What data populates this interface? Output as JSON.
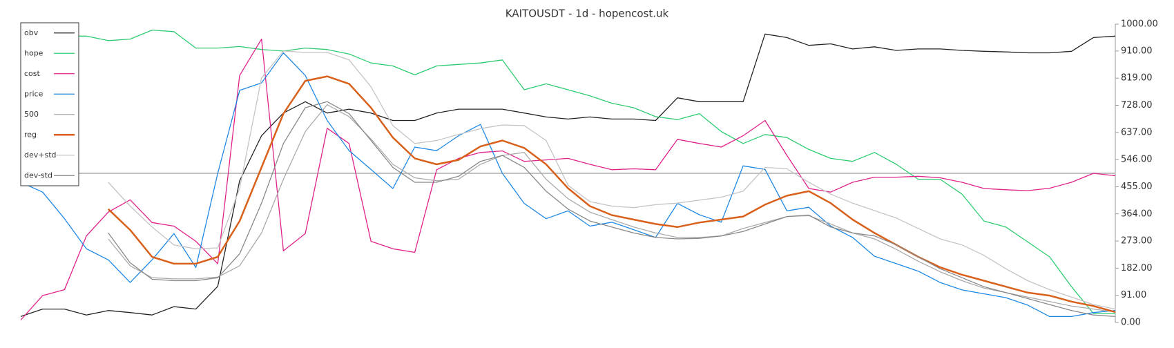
{
  "chart_data": {
    "type": "line",
    "title": "KAITOUSDT - 1d - hopencost.uk",
    "ylim": [
      0,
      1000
    ],
    "yticks": [
      {
        "value": 0,
        "label": "0.00"
      },
      {
        "value": 91,
        "label": "91.00"
      },
      {
        "value": 182,
        "label": "182.00"
      },
      {
        "value": 273,
        "label": "273.00"
      },
      {
        "value": 364,
        "label": "364.00"
      },
      {
        "value": 455,
        "label": "455.00"
      },
      {
        "value": 546,
        "label": "546.00"
      },
      {
        "value": 637,
        "label": "637.00"
      },
      {
        "value": 728,
        "label": "728.00"
      },
      {
        "value": 819,
        "label": "819.00"
      },
      {
        "value": 910,
        "label": "910.00"
      },
      {
        "value": 1000,
        "label": "1000.00"
      }
    ],
    "reference_line": 500,
    "reference_color": "#aaaaaa",
    "legend": "top-left",
    "series": [
      {
        "name": "obv",
        "color": "#222222",
        "values": [
          20,
          45,
          45,
          25,
          40,
          33,
          25,
          53,
          45,
          121,
          475,
          626,
          702,
          740,
          702,
          715,
          702,
          677,
          677,
          702,
          715,
          715,
          715,
          702,
          689,
          682,
          689,
          682,
          682,
          677,
          753,
          740,
          740,
          740,
          967,
          955,
          929,
          934,
          917,
          924,
          912,
          917,
          917,
          912,
          909,
          907,
          904,
          904,
          909,
          955,
          960
        ]
      },
      {
        "name": "hope",
        "color": "#2ecc71",
        "values": [
          965,
          965,
          960,
          960,
          945,
          950,
          980,
          975,
          920,
          920,
          925,
          915,
          910,
          920,
          915,
          900,
          870,
          860,
          830,
          860,
          865,
          870,
          880,
          780,
          800,
          780,
          760,
          735,
          720,
          690,
          680,
          700,
          640,
          600,
          630,
          620,
          580,
          550,
          540,
          570,
          530,
          480,
          480,
          430,
          340,
          320,
          270,
          220,
          120,
          30,
          30
        ]
      },
      {
        "name": "cost",
        "color": "#e0218a",
        "values": [
          8,
          90,
          110,
          290,
          370,
          411,
          335,
          323,
          272,
          197,
          828,
          950,
          240,
          298,
          651,
          600,
          272,
          247,
          235,
          512,
          550,
          570,
          575,
          540,
          545,
          550,
          530,
          512,
          515,
          512,
          614,
          600,
          588,
          626,
          677,
          560,
          449,
          437,
          470,
          487,
          487,
          490,
          485,
          470,
          449,
          445,
          442,
          450,
          470,
          500,
          492
        ]
      },
      {
        "name": "price",
        "color": "#1e88e5",
        "values": [
          470,
          437,
          348,
          247,
          210,
          134,
          210,
          298,
          184,
          500,
          778,
          803,
          904,
          828,
          677,
          576,
          513,
          449,
          588,
          576,
          626,
          664,
          500,
          399,
          348,
          374,
          323,
          336,
          311,
          285,
          399,
          361,
          336,
          525,
          513,
          374,
          386,
          323,
          285,
          222,
          197,
          172,
          134,
          109,
          96,
          83,
          58,
          20,
          20,
          33,
          40
        ]
      },
      {
        "name": "500",
        "color": "#aaaaaa",
        "values": [
          null,
          null,
          null,
          null,
          280,
          190,
          150,
          146,
          146,
          152,
          190,
          300,
          480,
          640,
          730,
          690,
          615,
          530,
          485,
          475,
          480,
          530,
          560,
          570,
          480,
          415,
          370,
          345,
          320,
          300,
          285,
          285,
          290,
          315,
          335,
          355,
          358,
          330,
          300,
          280,
          245,
          205,
          170,
          140,
          115,
          100,
          85,
          70,
          55,
          45,
          35
        ]
      },
      {
        "name": "reg",
        "color": "#d9601a",
        "values": [
          null,
          null,
          null,
          null,
          380,
          310,
          220,
          197,
          197,
          220,
          340,
          520,
          700,
          810,
          825,
          800,
          720,
          620,
          550,
          530,
          545,
          590,
          610,
          585,
          530,
          450,
          390,
          360,
          345,
          330,
          320,
          335,
          345,
          355,
          395,
          425,
          440,
          400,
          345,
          300,
          260,
          220,
          185,
          160,
          140,
          120,
          100,
          90,
          70,
          55,
          35
        ]
      },
      {
        "name": "dev+std",
        "color": "#c4c4c4",
        "values": [
          null,
          null,
          null,
          null,
          470,
          390,
          320,
          260,
          247,
          250,
          450,
          820,
          910,
          905,
          905,
          880,
          790,
          660,
          600,
          610,
          630,
          650,
          662,
          660,
          610,
          460,
          405,
          390,
          385,
          395,
          400,
          410,
          420,
          440,
          520,
          515,
          470,
          430,
          400,
          375,
          350,
          315,
          280,
          260,
          225,
          180,
          140,
          110,
          85,
          60,
          45
        ]
      },
      {
        "name": "dev-std",
        "color": "#888888",
        "values": [
          null,
          null,
          null,
          null,
          300,
          200,
          145,
          140,
          140,
          150,
          230,
          400,
          600,
          720,
          740,
          700,
          610,
          520,
          470,
          470,
          490,
          540,
          560,
          520,
          440,
          380,
          340,
          320,
          300,
          285,
          280,
          282,
          290,
          305,
          330,
          355,
          360,
          320,
          300,
          290,
          260,
          220,
          180,
          150,
          120,
          100,
          80,
          60,
          40,
          25,
          20
        ]
      }
    ]
  }
}
